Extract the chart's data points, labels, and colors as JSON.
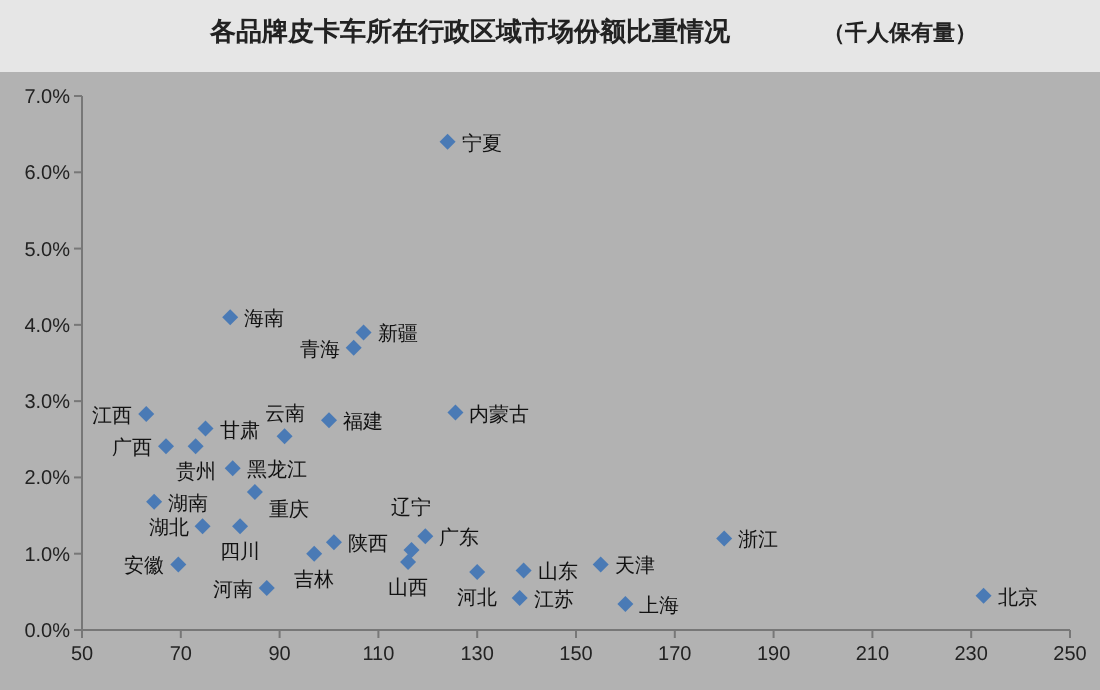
{
  "chart_data": {
    "type": "scatter",
    "title": "各品牌皮卡车所在行政区域市场份额比重情况",
    "subtitle": "（千人保有量）",
    "xlim": [
      50,
      250
    ],
    "xticks": [
      50,
      70,
      90,
      110,
      130,
      150,
      170,
      190,
      210,
      230,
      250
    ],
    "ylim": [
      0,
      7
    ],
    "yticks": [
      {
        "value": 0,
        "label": "0.0%"
      },
      {
        "value": 1,
        "label": "1.0%"
      },
      {
        "value": 2,
        "label": "2.0%"
      },
      {
        "value": 3,
        "label": "3.0%"
      },
      {
        "value": 4,
        "label": "4.0%"
      },
      {
        "value": 5,
        "label": "5.0%"
      },
      {
        "value": 6,
        "label": "6.0%"
      },
      {
        "value": 7,
        "label": "7.0%"
      }
    ],
    "grid": false,
    "marker": "diamond",
    "series": [
      {
        "color": "#4a7ab5",
        "x": [
          124,
          80,
          107,
          105,
          100,
          125.6,
          63,
          75,
          67,
          73,
          91,
          80.5,
          85,
          64.6,
          74.4,
          82,
          101,
          97,
          69.5,
          87.4,
          119.5,
          116.7,
          116,
          130,
          139.4,
          138.6,
          155,
          160,
          180,
          232.5
        ],
        "values": [
          6.4,
          4.1,
          3.9,
          3.7,
          2.75,
          2.85,
          2.83,
          2.64,
          2.41,
          2.41,
          2.54,
          2.12,
          1.81,
          1.68,
          1.36,
          1.36,
          1.15,
          1.0,
          0.86,
          0.55,
          1.23,
          1.05,
          0.89,
          0.76,
          0.78,
          0.42,
          0.86,
          0.34,
          1.2,
          0.45
        ],
        "value_labels": [
          "宁夏",
          "海南",
          "新疆",
          "青海",
          "福建",
          "内蒙古",
          "江西",
          "甘肃",
          "广西",
          "贵州",
          "云南",
          "黑龙江",
          "重庆",
          "湖南",
          "湖北",
          "四川",
          "陕西",
          "吉林",
          "安徽",
          "河南",
          "广东",
          "辽宁",
          "山西",
          "河北",
          "山东",
          "江苏",
          "天津",
          "上海",
          "浙江",
          "北京"
        ]
      }
    ]
  }
}
